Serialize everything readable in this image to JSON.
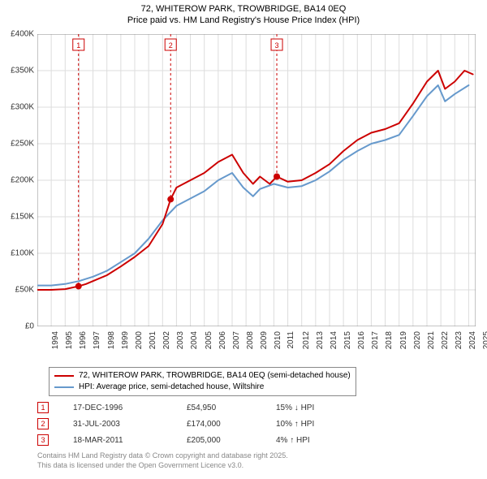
{
  "title_line1": "72, WHITEROW PARK, TROWBRIDGE, BA14 0EQ",
  "title_line2": "Price paid vs. HM Land Registry's House Price Index (HPI)",
  "chart": {
    "type": "line",
    "background_color": "#ffffff",
    "grid_color": "#dddddd",
    "axis_color": "#888888",
    "title_fontsize": 11,
    "label_fontsize": 10,
    "x_min": 1994,
    "x_max": 2025.5,
    "x_ticks": [
      1994,
      1995,
      1996,
      1997,
      1998,
      1999,
      2000,
      2001,
      2002,
      2003,
      2004,
      2005,
      2006,
      2007,
      2008,
      2009,
      2010,
      2011,
      2012,
      2013,
      2014,
      2015,
      2016,
      2017,
      2018,
      2019,
      2020,
      2021,
      2022,
      2023,
      2024,
      2025
    ],
    "y_min": 0,
    "y_max": 400000,
    "y_ticks": [
      0,
      50000,
      100000,
      150000,
      200000,
      250000,
      300000,
      350000,
      400000
    ],
    "y_tick_labels": [
      "£0",
      "£50K",
      "£100K",
      "£150K",
      "£200K",
      "£250K",
      "£300K",
      "£350K",
      "£400K"
    ],
    "series": [
      {
        "name": "72, WHITEROW PARK, TROWBRIDGE, BA14 0EQ (semi-detached house)",
        "color": "#cc0000",
        "line_width": 2,
        "data": [
          [
            1994,
            50000
          ],
          [
            1995,
            50000
          ],
          [
            1996,
            51000
          ],
          [
            1996.96,
            54950
          ],
          [
            1997.5,
            58000
          ],
          [
            1998,
            62000
          ],
          [
            1999,
            70000
          ],
          [
            2000,
            82000
          ],
          [
            2001,
            95000
          ],
          [
            2002,
            110000
          ],
          [
            2003,
            140000
          ],
          [
            2003.58,
            174000
          ],
          [
            2004,
            190000
          ],
          [
            2005,
            200000
          ],
          [
            2006,
            210000
          ],
          [
            2007,
            225000
          ],
          [
            2008,
            235000
          ],
          [
            2008.8,
            210000
          ],
          [
            2009.5,
            195000
          ],
          [
            2010,
            205000
          ],
          [
            2010.7,
            195000
          ],
          [
            2011.21,
            205000
          ],
          [
            2012,
            198000
          ],
          [
            2013,
            200000
          ],
          [
            2014,
            210000
          ],
          [
            2015,
            222000
          ],
          [
            2016,
            240000
          ],
          [
            2017,
            255000
          ],
          [
            2018,
            265000
          ],
          [
            2019,
            270000
          ],
          [
            2020,
            278000
          ],
          [
            2021,
            305000
          ],
          [
            2022,
            335000
          ],
          [
            2022.8,
            350000
          ],
          [
            2023.3,
            325000
          ],
          [
            2024,
            335000
          ],
          [
            2024.7,
            350000
          ],
          [
            2025.3,
            345000
          ]
        ]
      },
      {
        "name": "HPI: Average price, semi-detached house, Wiltshire",
        "color": "#6699cc",
        "line_width": 2,
        "data": [
          [
            1994,
            56000
          ],
          [
            1995,
            56000
          ],
          [
            1996,
            58000
          ],
          [
            1997,
            62000
          ],
          [
            1998,
            68000
          ],
          [
            1999,
            76000
          ],
          [
            2000,
            88000
          ],
          [
            2001,
            100000
          ],
          [
            2002,
            120000
          ],
          [
            2003,
            145000
          ],
          [
            2004,
            165000
          ],
          [
            2005,
            175000
          ],
          [
            2006,
            185000
          ],
          [
            2007,
            200000
          ],
          [
            2008,
            210000
          ],
          [
            2008.8,
            190000
          ],
          [
            2009.5,
            178000
          ],
          [
            2010,
            188000
          ],
          [
            2011,
            195000
          ],
          [
            2012,
            190000
          ],
          [
            2013,
            192000
          ],
          [
            2014,
            200000
          ],
          [
            2015,
            212000
          ],
          [
            2016,
            228000
          ],
          [
            2017,
            240000
          ],
          [
            2018,
            250000
          ],
          [
            2019,
            255000
          ],
          [
            2020,
            262000
          ],
          [
            2021,
            288000
          ],
          [
            2022,
            315000
          ],
          [
            2022.8,
            330000
          ],
          [
            2023.3,
            308000
          ],
          [
            2024,
            318000
          ],
          [
            2025,
            330000
          ]
        ]
      }
    ],
    "markers": [
      {
        "label": "1",
        "x": 1996.96,
        "y": 54950,
        "color": "#cc0000"
      },
      {
        "label": "2",
        "x": 2003.58,
        "y": 174000,
        "color": "#cc0000"
      },
      {
        "label": "3",
        "x": 2011.21,
        "y": 205000,
        "color": "#cc0000"
      }
    ]
  },
  "legend": {
    "items": [
      {
        "color": "#cc0000",
        "label": "72, WHITEROW PARK, TROWBRIDGE, BA14 0EQ (semi-detached house)"
      },
      {
        "color": "#6699cc",
        "label": "HPI: Average price, semi-detached house, Wiltshire"
      }
    ]
  },
  "transactions": [
    {
      "num": "1",
      "date": "17-DEC-1996",
      "price": "£54,950",
      "delta": "15% ↓ HPI",
      "marker_color": "#cc0000"
    },
    {
      "num": "2",
      "date": "31-JUL-2003",
      "price": "£174,000",
      "delta": "10% ↑ HPI",
      "marker_color": "#cc0000"
    },
    {
      "num": "3",
      "date": "18-MAR-2011",
      "price": "£205,000",
      "delta": "4% ↑ HPI",
      "marker_color": "#cc0000"
    }
  ],
  "footer_line1": "Contains HM Land Registry data © Crown copyright and database right 2025.",
  "footer_line2": "This data is licensed under the Open Government Licence v3.0."
}
